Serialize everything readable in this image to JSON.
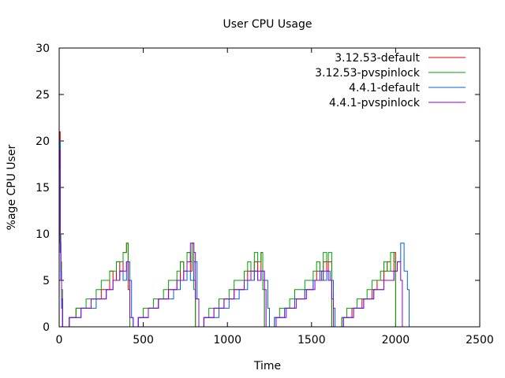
{
  "chart_data": {
    "type": "line",
    "title": "User CPU Usage",
    "xlabel": "Time",
    "ylabel": "%age CPU User",
    "xlim": [
      0,
      2500
    ],
    "ylim": [
      0,
      30
    ],
    "xticks": [
      0,
      500,
      1000,
      1500,
      2000,
      2500
    ],
    "yticks": [
      0,
      5,
      10,
      15,
      20,
      25,
      30
    ],
    "grid": false,
    "legend_position": "top-right",
    "series": [
      {
        "name": "3.12.53-default",
        "color": "#e00000",
        "x": [
          0,
          3,
          6,
          10,
          14,
          20,
          30,
          40,
          60,
          80,
          100,
          130,
          160,
          190,
          220,
          250,
          280,
          300,
          320,
          340,
          360,
          380,
          400,
          410,
          420,
          440,
          470,
          500,
          530,
          560,
          590,
          620,
          650,
          680,
          700,
          720,
          740,
          760,
          780,
          790,
          800,
          810,
          830,
          860,
          890,
          920,
          950,
          980,
          1010,
          1040,
          1070,
          1100,
          1120,
          1140,
          1160,
          1180,
          1200,
          1210,
          1220,
          1250,
          1280,
          1310,
          1340,
          1370,
          1400,
          1430,
          1460,
          1490,
          1510,
          1530,
          1550,
          1570,
          1590,
          1600,
          1620,
          1650,
          1680,
          1710,
          1740,
          1770,
          1800,
          1830,
          1860,
          1890,
          1910,
          1930,
          1950,
          1970,
          1990,
          2000
        ],
        "y": [
          20,
          21,
          9,
          6,
          3,
          0,
          0,
          0,
          1,
          1,
          2,
          2,
          2,
          3,
          3,
          4,
          4,
          6,
          5,
          7,
          6,
          8,
          9,
          4,
          0,
          0,
          1,
          1,
          2,
          2,
          3,
          3,
          4,
          4,
          5,
          7,
          5,
          8,
          6,
          9,
          5,
          0,
          0,
          1,
          1,
          2,
          2,
          3,
          3,
          4,
          4,
          5,
          6,
          5,
          7,
          6,
          8,
          5,
          0,
          0,
          1,
          1,
          2,
          2,
          3,
          3,
          4,
          4,
          5,
          6,
          5,
          7,
          6,
          7,
          0,
          0,
          1,
          1,
          2,
          2,
          3,
          3,
          4,
          5,
          5,
          6,
          7,
          6,
          8,
          0
        ]
      },
      {
        "name": "3.12.53-pvspinlock",
        "color": "#00a000",
        "x": [
          0,
          3,
          6,
          10,
          14,
          20,
          30,
          40,
          60,
          80,
          100,
          130,
          160,
          190,
          220,
          250,
          280,
          300,
          320,
          340,
          360,
          380,
          400,
          410,
          420,
          440,
          470,
          500,
          530,
          560,
          590,
          620,
          650,
          680,
          700,
          720,
          740,
          760,
          780,
          790,
          800,
          810,
          830,
          860,
          890,
          920,
          950,
          980,
          1010,
          1040,
          1070,
          1100,
          1120,
          1140,
          1160,
          1180,
          1200,
          1210,
          1220,
          1250,
          1280,
          1310,
          1340,
          1370,
          1400,
          1430,
          1460,
          1490,
          1510,
          1530,
          1550,
          1570,
          1590,
          1600,
          1620,
          1650,
          1680,
          1710,
          1740,
          1770,
          1800,
          1830,
          1860,
          1890,
          1910,
          1930,
          1950,
          1970,
          1990,
          2000
        ],
        "y": [
          18,
          20,
          10,
          7,
          4,
          0,
          0,
          0,
          1,
          1,
          2,
          2,
          3,
          3,
          4,
          5,
          5,
          6,
          6,
          7,
          7,
          8,
          9,
          5,
          0,
          0,
          1,
          2,
          2,
          3,
          3,
          4,
          5,
          5,
          6,
          7,
          6,
          8,
          7,
          9,
          4,
          0,
          0,
          1,
          2,
          2,
          3,
          3,
          4,
          5,
          5,
          6,
          7,
          6,
          8,
          7,
          8,
          4,
          0,
          0,
          1,
          2,
          2,
          3,
          4,
          4,
          5,
          5,
          6,
          7,
          6,
          8,
          7,
          8,
          0,
          0,
          1,
          2,
          2,
          3,
          3,
          4,
          5,
          5,
          6,
          7,
          6,
          8,
          7,
          0
        ]
      },
      {
        "name": "4.4.1-default",
        "color": "#0060e0",
        "x": [
          0,
          3,
          6,
          10,
          14,
          20,
          40,
          60,
          80,
          100,
          130,
          160,
          190,
          220,
          250,
          280,
          300,
          320,
          340,
          360,
          380,
          400,
          420,
          430,
          440,
          470,
          500,
          530,
          560,
          590,
          620,
          650,
          680,
          700,
          720,
          740,
          760,
          780,
          800,
          820,
          830,
          860,
          890,
          920,
          950,
          980,
          1010,
          1040,
          1070,
          1100,
          1120,
          1140,
          1160,
          1180,
          1200,
          1220,
          1240,
          1250,
          1280,
          1310,
          1340,
          1370,
          1400,
          1430,
          1460,
          1490,
          1510,
          1530,
          1550,
          1570,
          1590,
          1610,
          1630,
          1640,
          1660,
          1690,
          1720,
          1750,
          1780,
          1810,
          1840,
          1870,
          1900,
          1930,
          1960,
          1990,
          2010,
          2030,
          2050,
          2070,
          2080
        ],
        "y": [
          19,
          20,
          8,
          5,
          2,
          0,
          0,
          1,
          1,
          1,
          2,
          2,
          2,
          3,
          3,
          4,
          4,
          5,
          5,
          6,
          5,
          7,
          5,
          1,
          0,
          1,
          1,
          2,
          2,
          3,
          3,
          3,
          4,
          4,
          5,
          5,
          6,
          5,
          7,
          3,
          0,
          1,
          1,
          1,
          2,
          2,
          3,
          3,
          4,
          4,
          5,
          5,
          6,
          5,
          6,
          5,
          2,
          0,
          1,
          1,
          2,
          2,
          3,
          3,
          4,
          4,
          5,
          5,
          6,
          5,
          6,
          5,
          2,
          0,
          0,
          1,
          1,
          2,
          2,
          3,
          3,
          4,
          4,
          5,
          5,
          6,
          7,
          9,
          6,
          4,
          0
        ]
      },
      {
        "name": "4.4.1-pvspinlock",
        "color": "#9000e0",
        "x": [
          0,
          3,
          6,
          10,
          14,
          20,
          40,
          60,
          80,
          100,
          130,
          160,
          190,
          220,
          250,
          280,
          300,
          320,
          340,
          360,
          380,
          400,
          410,
          420,
          440,
          470,
          500,
          530,
          560,
          590,
          620,
          650,
          680,
          700,
          720,
          740,
          760,
          780,
          800,
          810,
          830,
          860,
          890,
          920,
          950,
          980,
          1010,
          1040,
          1070,
          1100,
          1120,
          1140,
          1160,
          1180,
          1200,
          1220,
          1230,
          1260,
          1290,
          1320,
          1350,
          1380,
          1410,
          1440,
          1470,
          1500,
          1520,
          1540,
          1560,
          1580,
          1600,
          1620,
          1630,
          1660,
          1690,
          1720,
          1750,
          1780,
          1810,
          1840,
          1870,
          1900,
          1930,
          1960,
          1990,
          2010,
          2030,
          2040
        ],
        "y": [
          17,
          19,
          9,
          6,
          3,
          0,
          0,
          1,
          1,
          1,
          2,
          2,
          3,
          3,
          3,
          4,
          4,
          5,
          5,
          6,
          6,
          7,
          5,
          1,
          0,
          1,
          1,
          2,
          2,
          3,
          3,
          4,
          4,
          5,
          5,
          6,
          7,
          9,
          8,
          3,
          0,
          1,
          1,
          2,
          2,
          3,
          3,
          4,
          4,
          5,
          5,
          6,
          6,
          5,
          6,
          4,
          0,
          0,
          1,
          1,
          2,
          2,
          3,
          3,
          4,
          4,
          5,
          5,
          6,
          6,
          5,
          3,
          0,
          0,
          1,
          1,
          2,
          2,
          3,
          3,
          4,
          4,
          5,
          5,
          6,
          7,
          5,
          0
        ]
      }
    ]
  }
}
